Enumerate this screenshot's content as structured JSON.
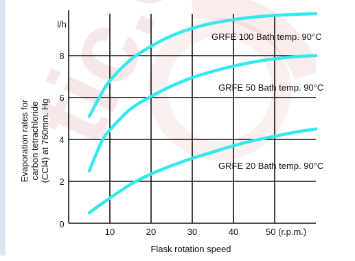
{
  "chart_data": {
    "type": "line",
    "y_unit_label": "l/h",
    "ylabel_lines": [
      "Evaporation rates for",
      "carbon tetrachloride",
      "(CCl4) at 760mm. Hg"
    ],
    "xlabel": "Flask rotation speed",
    "x_ticks": [
      "10",
      "20",
      "30",
      "40",
      "50 (r.p.m.)"
    ],
    "x_tick_values": [
      10,
      20,
      30,
      40,
      50
    ],
    "y_ticks": [
      "0",
      "2",
      "4",
      "6",
      "8"
    ],
    "y_tick_values": [
      0,
      2,
      4,
      6,
      8
    ],
    "xlim": [
      0,
      60
    ],
    "ylim": [
      0,
      10
    ],
    "grid": true,
    "series": [
      {
        "name": "GRFE 100 Bath temp. 90°C",
        "color": "#33e8ee",
        "x": [
          5,
          8,
          10,
          15,
          20,
          25,
          30,
          35,
          40,
          45,
          50,
          55,
          60
        ],
        "y": [
          5.1,
          6.2,
          6.8,
          7.8,
          8.45,
          8.95,
          9.3,
          9.55,
          9.72,
          9.84,
          9.92,
          9.97,
          10.0
        ]
      },
      {
        "name": "GRFE 50 Bath temp. 90°C",
        "color": "#33e8ee",
        "x": [
          5,
          8,
          10,
          15,
          20,
          25,
          30,
          35,
          40,
          45,
          50,
          55,
          60
        ],
        "y": [
          2.5,
          3.9,
          4.45,
          5.45,
          6.05,
          6.55,
          6.95,
          7.25,
          7.5,
          7.7,
          7.85,
          7.95,
          8.0
        ]
      },
      {
        "name": "GRFE 20 Bath temp. 90°C",
        "color": "#33e8ee",
        "x": [
          5,
          10,
          15,
          20,
          25,
          30,
          35,
          40,
          45,
          50,
          55,
          60
        ],
        "y": [
          0.5,
          1.2,
          1.85,
          2.35,
          2.75,
          3.1,
          3.4,
          3.7,
          3.95,
          4.15,
          4.35,
          4.5
        ]
      }
    ]
  },
  "watermark_letters": "tic.co"
}
